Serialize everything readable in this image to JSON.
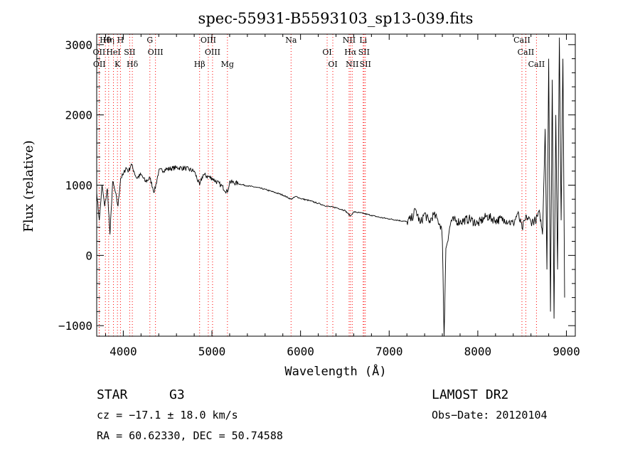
{
  "chart_data": {
    "type": "line",
    "title": "spec-55931-B5593103_sp13-039.fits",
    "xlabel": "Wavelength (Å)",
    "ylabel": "Flux (relative)",
    "xlim": [
      3700,
      9100
    ],
    "ylim": [
      -1150,
      3150
    ],
    "xticks": [
      4000,
      5000,
      6000,
      7000,
      8000,
      9000
    ],
    "yticks": [
      -1000,
      0,
      1000,
      2000,
      3000
    ],
    "grid": false,
    "series": [
      {
        "x": [
          3700,
          3730,
          3760,
          3790,
          3820,
          3850,
          3880,
          3910,
          3940,
          3970,
          4000,
          4030,
          4060,
          4090,
          4120,
          4150,
          4200,
          4250,
          4300,
          4350,
          4400,
          4500,
          4600,
          4700,
          4800,
          4861,
          4900,
          5000,
          5100,
          5175,
          5200,
          5300,
          5400,
          5500,
          5600,
          5700,
          5800,
          5893,
          5950,
          6000,
          6100,
          6200,
          6300,
          6400,
          6500,
          6563,
          6600,
          6700,
          6800,
          6900,
          7000,
          7100,
          7200,
          7250,
          7300,
          7350,
          7400,
          7450,
          7500,
          7550,
          7590,
          7600,
          7620,
          7640,
          7700,
          7800,
          7900,
          8000,
          8100,
          8200,
          8300,
          8350,
          8400,
          8450,
          8500,
          8550,
          8600,
          8650,
          8700,
          8730,
          8760,
          8780,
          8800,
          8820,
          8840,
          8860,
          8880,
          8900,
          8920,
          8940,
          8960,
          8980
        ],
        "y": [
          900,
          500,
          1000,
          700,
          950,
          300,
          1050,
          900,
          700,
          1100,
          1150,
          1250,
          1200,
          1300,
          1200,
          1100,
          1150,
          1050,
          1100,
          900,
          1200,
          1230,
          1250,
          1240,
          1200,
          1000,
          1150,
          1100,
          1000,
          900,
          1050,
          1020,
          990,
          970,
          940,
          900,
          860,
          800,
          840,
          810,
          780,
          740,
          700,
          680,
          640,
          560,
          620,
          600,
          570,
          540,
          520,
          500,
          480,
          520,
          650,
          450,
          600,
          470,
          580,
          500,
          400,
          200,
          -1150,
          100,
          500,
          480,
          520,
          450,
          560,
          500,
          520,
          480,
          450,
          600,
          380,
          550,
          480,
          500,
          600,
          300,
          1800,
          -200,
          2800,
          -800,
          2500,
          -900,
          2000,
          -200,
          3100,
          500,
          2800,
          -600
        ]
      }
    ],
    "lines": [
      {
        "label": "Hθ",
        "x": 3798,
        "color": "#ff0000"
      },
      {
        "label": "OII",
        "x": 3727,
        "color": "#ff0000"
      },
      {
        "label": "OII",
        "x": 3730,
        "color": "#ff0000"
      },
      {
        "label": "Hη",
        "x": 3835,
        "color": "#ff0000"
      },
      {
        "label": "HeI",
        "x": 3889,
        "color": "#ff0000"
      },
      {
        "label": "K",
        "x": 3934,
        "color": "#ff0000"
      },
      {
        "label": "H",
        "x": 3968,
        "color": "#ff0000"
      },
      {
        "label": "SII",
        "x": 4072,
        "color": "#ff0000"
      },
      {
        "label": "Hδ",
        "x": 4102,
        "color": "#ff0000"
      },
      {
        "label": "G",
        "x": 4300,
        "color": "#ff0000"
      },
      {
        "label": "OIII",
        "x": 4363,
        "color": "#ff0000"
      },
      {
        "label": "Hβ",
        "x": 4861,
        "color": "#ff0000"
      },
      {
        "label": "OIII",
        "x": 4959,
        "color": "#ff0000"
      },
      {
        "label": "OIII",
        "x": 5007,
        "color": "#ff0000"
      },
      {
        "label": "Mg",
        "x": 5175,
        "color": "#ff0000"
      },
      {
        "label": "Na",
        "x": 5893,
        "color": "#ff0000"
      },
      {
        "label": "OI",
        "x": 6300,
        "color": "#ff0000"
      },
      {
        "label": "OI",
        "x": 6364,
        "color": "#ff0000"
      },
      {
        "label": "NII",
        "x": 6548,
        "color": "#ff0000"
      },
      {
        "label": "Hα",
        "x": 6563,
        "color": "#ff0000"
      },
      {
        "label": "NII",
        "x": 6583,
        "color": "#ff0000"
      },
      {
        "label": "Li",
        "x": 6707,
        "color": "#ff0000"
      },
      {
        "label": "SII",
        "x": 6716,
        "color": "#ff0000"
      },
      {
        "label": "SII",
        "x": 6731,
        "color": "#ff0000"
      },
      {
        "label": "CaII",
        "x": 8498,
        "color": "#ff0000"
      },
      {
        "label": "CaII",
        "x": 8542,
        "color": "#ff0000"
      },
      {
        "label": "CaII",
        "x": 8662,
        "color": "#ff0000"
      }
    ]
  },
  "footer": {
    "class": "STAR",
    "subclass": "G3",
    "survey": "LAMOST DR2",
    "cz": "cz = −17.1 ± 18.0 km/s",
    "obs_date": "Obs−Date: 20120104",
    "radec": "RA =  60.62330, DEC =  50.74588"
  }
}
